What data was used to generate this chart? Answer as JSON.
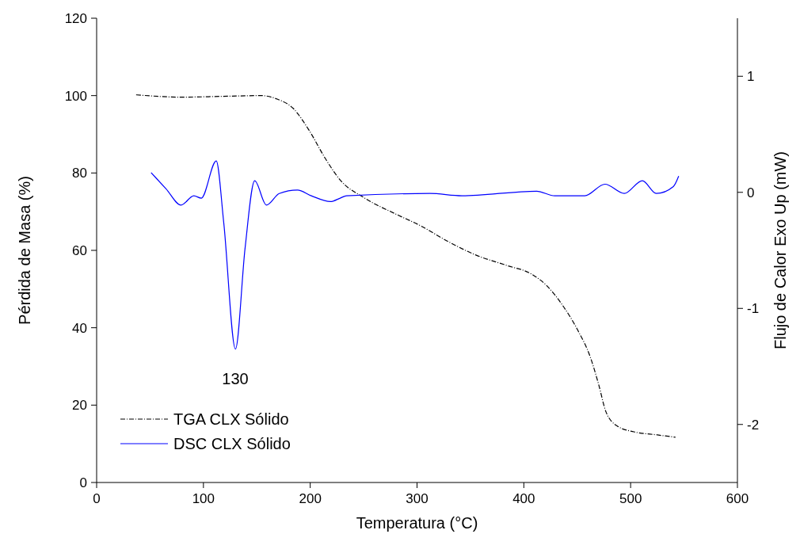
{
  "chart_data": {
    "type": "line",
    "xlabel": "Temperatura (°C)",
    "ylabel": "Pérdida de Masa (%)",
    "y2label": "Flujo de Calor Exo Up (mW)",
    "xlim": [
      0,
      600
    ],
    "xticks": [
      0,
      100,
      200,
      300,
      400,
      500,
      600
    ],
    "ylim": [
      0,
      120
    ],
    "yticks": [
      0,
      20,
      40,
      60,
      80,
      100,
      120
    ],
    "y2lim": [
      -2.5,
      1.5
    ],
    "y2ticks": [
      -2,
      -1,
      0,
      1
    ],
    "grid": false,
    "legend": "bottom left",
    "series": [
      {
        "name": "TGA CLX Sólido",
        "color": "#000000",
        "line_style": "dashed",
        "x": [
          37,
          80,
          117,
          154,
          169,
          184,
          199,
          214,
          228,
          251,
          280,
          303,
          329,
          355,
          384,
          407,
          421,
          436,
          451,
          462,
          470,
          477,
          488,
          503,
          525,
          542
        ],
        "values": [
          100.2,
          99.6,
          99.8,
          100,
          99.1,
          96.7,
          91,
          83.8,
          78.2,
          73.5,
          69.4,
          66.4,
          62.3,
          58.8,
          56.1,
          53.9,
          51,
          45.9,
          39.1,
          32.6,
          25.4,
          18.2,
          14.5,
          13.1,
          12.3,
          11.7
        ]
      },
      {
        "name": "DSC CLX Sólido",
        "color": "#0000ff",
        "line_style": "solid",
        "axis": "y2",
        "x": [
          51,
          65,
          79,
          91,
          98,
          112,
          119,
          130,
          139,
          148,
          159,
          171,
          188,
          201,
          219,
          228,
          234,
          312,
          342,
          412,
          429,
          457,
          476,
          494,
          511,
          524,
          540,
          545
        ],
        "values": [
          0.17,
          0.03,
          -0.11,
          -0.03,
          -0.05,
          0.27,
          -0.26,
          -1.35,
          -0.48,
          0.1,
          -0.11,
          -0.01,
          0.02,
          -0.03,
          -0.08,
          -0.05,
          -0.03,
          -0.01,
          -0.03,
          0.01,
          -0.03,
          -0.03,
          0.07,
          -0.01,
          0.1,
          -0.01,
          0.05,
          0.14
        ]
      }
    ],
    "annotations": [
      "130"
    ]
  }
}
